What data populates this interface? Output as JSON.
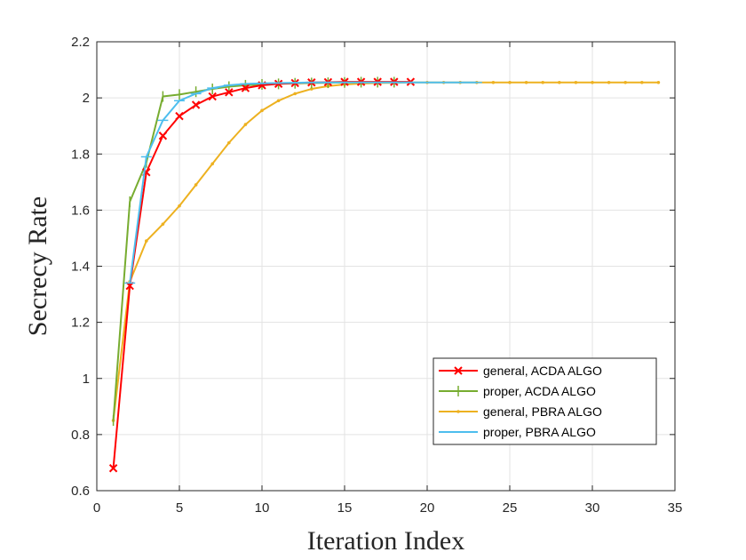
{
  "chart_data": {
    "type": "line",
    "title": "",
    "xlabel": "Iteration Index",
    "ylabel": "Secrecy Rate",
    "xlim": [
      0,
      35
    ],
    "ylim": [
      0.6,
      2.2
    ],
    "xticks": [
      0,
      5,
      10,
      15,
      20,
      25,
      30,
      35
    ],
    "yticks": [
      0.6,
      0.8,
      1,
      1.2,
      1.4,
      1.6,
      1.8,
      2,
      2.2
    ],
    "xtick_labels": [
      "0",
      "5",
      "10",
      "15",
      "20",
      "25",
      "30",
      "35"
    ],
    "ytick_labels": [
      "0.6",
      "0.8",
      "1",
      "1.2",
      "1.4",
      "1.6",
      "1.8",
      "2",
      "2.2"
    ],
    "grid": true,
    "legend_position": "bottom-right",
    "series": [
      {
        "name": "general, ACDA ALGO",
        "color": "#ff0000",
        "marker": "x",
        "x": [
          1,
          2,
          3,
          4,
          5,
          6,
          7,
          8,
          9,
          10,
          11,
          12,
          13,
          14,
          15,
          16,
          17,
          18,
          19
        ],
        "y": [
          0.68,
          1.33,
          1.735,
          1.865,
          1.935,
          1.975,
          2.005,
          2.02,
          2.035,
          2.045,
          2.05,
          2.053,
          2.055,
          2.056,
          2.057,
          2.057,
          2.057,
          2.057,
          2.057
        ]
      },
      {
        "name": "proper, ACDA ALGO",
        "color": "#77ac30",
        "marker": "|",
        "x": [
          1,
          2,
          3,
          4,
          5,
          6,
          7,
          8,
          9,
          10,
          11,
          12,
          13,
          14,
          15,
          16,
          17,
          18
        ],
        "y": [
          0.85,
          1.63,
          1.77,
          2.005,
          2.012,
          2.022,
          2.032,
          2.04,
          2.045,
          2.048,
          2.05,
          2.052,
          2.053,
          2.054,
          2.055,
          2.056,
          2.056,
          2.056
        ]
      },
      {
        "name": "general, PBRA ALGO",
        "color": "#edb120",
        "marker": ".",
        "x": [
          1,
          2,
          3,
          4,
          5,
          6,
          7,
          8,
          9,
          10,
          11,
          12,
          13,
          14,
          15,
          16,
          17,
          18,
          19,
          20,
          21,
          22,
          23,
          24,
          25,
          26,
          27,
          28,
          29,
          30,
          31,
          32,
          33,
          34
        ],
        "y": [
          0.85,
          1.345,
          1.49,
          1.55,
          1.615,
          1.69,
          1.765,
          1.84,
          1.905,
          1.955,
          1.99,
          2.015,
          2.032,
          2.042,
          2.048,
          2.051,
          2.053,
          2.054,
          2.055,
          2.055,
          2.055,
          2.055,
          2.055,
          2.055,
          2.055,
          2.055,
          2.055,
          2.055,
          2.055,
          2.055,
          2.055,
          2.055,
          2.055,
          2.055
        ]
      },
      {
        "name": "proper, PBRA ALGO",
        "color": "#4dbeee",
        "marker": "_",
        "x": [
          2,
          3,
          4,
          5,
          6,
          7,
          8,
          9,
          10,
          11,
          12,
          13,
          14,
          15,
          16,
          17,
          18,
          19,
          20,
          21,
          22,
          23
        ],
        "y": [
          1.34,
          1.79,
          1.92,
          1.99,
          2.015,
          2.035,
          2.045,
          2.05,
          2.052,
          2.053,
          2.054,
          2.055,
          2.055,
          2.055,
          2.055,
          2.055,
          2.055,
          2.055,
          2.055,
          2.055,
          2.055,
          2.055
        ]
      }
    ]
  }
}
